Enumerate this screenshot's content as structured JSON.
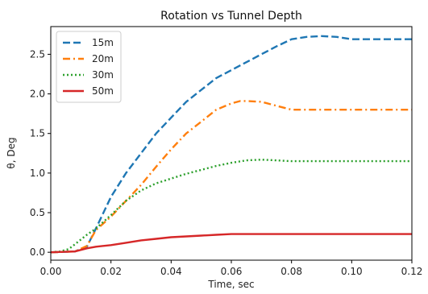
{
  "chart_data": {
    "type": "line",
    "title": "Rotation vs Tunnel Depth",
    "xlabel": "Time, sec",
    "ylabel": "θ, Deg",
    "xlim": [
      0.0,
      0.12
    ],
    "ylim": [
      -0.1,
      2.85
    ],
    "xticks": [
      0.0,
      0.02,
      0.04,
      0.06,
      0.08,
      0.1,
      0.12
    ],
    "xtick_labels": [
      "0.00",
      "0.02",
      "0.04",
      "0.06",
      "0.08",
      "0.10",
      "0.12"
    ],
    "yticks": [
      0.0,
      0.5,
      1.0,
      1.5,
      2.0,
      2.5
    ],
    "ytick_labels": [
      "0.0",
      "0.5",
      "1.0",
      "1.5",
      "2.0",
      "2.5"
    ],
    "grid": false,
    "legend_position": "top-left",
    "series": [
      {
        "name": "15m",
        "color": "#1f77b4",
        "dash": "dashed",
        "x": [
          0.0,
          0.008,
          0.012,
          0.015,
          0.02,
          0.025,
          0.03,
          0.035,
          0.04,
          0.045,
          0.05,
          0.055,
          0.06,
          0.065,
          0.07,
          0.075,
          0.08,
          0.085,
          0.09,
          0.095,
          0.1,
          0.105,
          0.11,
          0.115,
          0.12
        ],
        "y": [
          0.0,
          0.01,
          0.07,
          0.3,
          0.7,
          1.0,
          1.25,
          1.5,
          1.7,
          1.9,
          2.05,
          2.2,
          2.3,
          2.4,
          2.5,
          2.6,
          2.69,
          2.72,
          2.73,
          2.72,
          2.69,
          2.69,
          2.69,
          2.69,
          2.69
        ]
      },
      {
        "name": "20m",
        "color": "#ff7f0e",
        "dash": "dashdot",
        "x": [
          0.0,
          0.008,
          0.012,
          0.015,
          0.02,
          0.025,
          0.03,
          0.035,
          0.04,
          0.045,
          0.05,
          0.055,
          0.06,
          0.063,
          0.065,
          0.07,
          0.075,
          0.08,
          0.085,
          0.09,
          0.1,
          0.11,
          0.12
        ],
        "y": [
          0.0,
          0.01,
          0.08,
          0.28,
          0.45,
          0.65,
          0.85,
          1.08,
          1.3,
          1.5,
          1.65,
          1.8,
          1.88,
          1.91,
          1.91,
          1.9,
          1.85,
          1.8,
          1.8,
          1.8,
          1.8,
          1.8,
          1.8
        ]
      },
      {
        "name": "30m",
        "color": "#2ca02c",
        "dash": "dotted",
        "x": [
          0.0,
          0.003,
          0.006,
          0.009,
          0.012,
          0.015,
          0.02,
          0.025,
          0.03,
          0.035,
          0.04,
          0.045,
          0.05,
          0.055,
          0.06,
          0.065,
          0.07,
          0.075,
          0.08,
          0.09,
          0.1,
          0.11,
          0.12
        ],
        "y": [
          0.0,
          0.01,
          0.04,
          0.13,
          0.22,
          0.3,
          0.47,
          0.65,
          0.78,
          0.87,
          0.93,
          0.99,
          1.04,
          1.09,
          1.13,
          1.16,
          1.17,
          1.16,
          1.15,
          1.15,
          1.15,
          1.15,
          1.15
        ]
      },
      {
        "name": "50m",
        "color": "#d62728",
        "dash": "solid",
        "x": [
          0.0,
          0.008,
          0.012,
          0.015,
          0.02,
          0.025,
          0.03,
          0.035,
          0.04,
          0.045,
          0.05,
          0.055,
          0.06,
          0.065,
          0.08,
          0.1,
          0.12
        ],
        "y": [
          0.0,
          0.01,
          0.05,
          0.07,
          0.09,
          0.12,
          0.15,
          0.17,
          0.19,
          0.2,
          0.21,
          0.22,
          0.23,
          0.23,
          0.23,
          0.23,
          0.23
        ]
      }
    ]
  }
}
